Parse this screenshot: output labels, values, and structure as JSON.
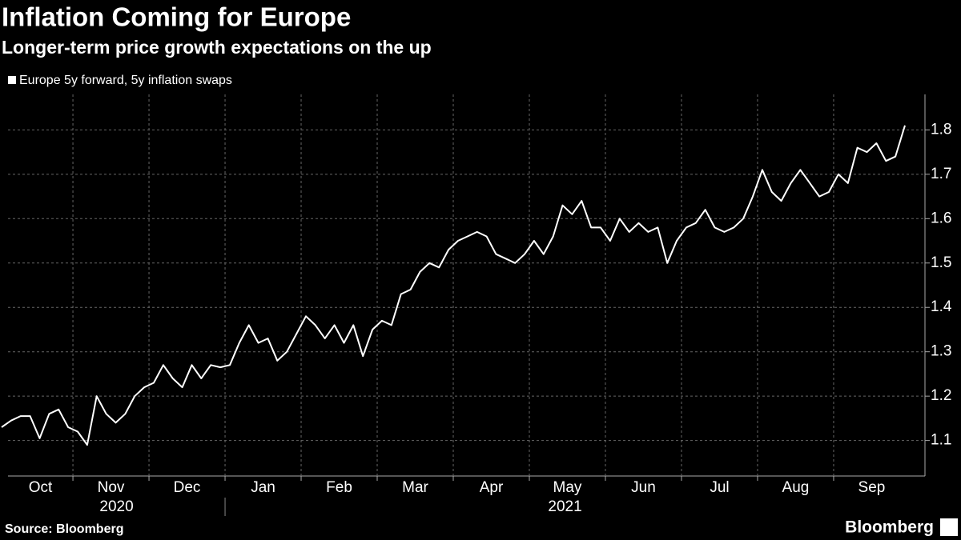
{
  "chart_data": {
    "type": "line",
    "title": "Inflation Coming for Europe",
    "subtitle": "Longer-term price growth expectations on the up",
    "categories": [
      null,
      null,
      null,
      null,
      "Oct",
      null,
      null,
      null,
      null,
      null,
      null,
      null,
      "Nov",
      null,
      null,
      null,
      null,
      null,
      null,
      null,
      "Dec",
      null,
      null,
      null,
      null,
      null,
      null,
      null,
      "Jan",
      null,
      null,
      null,
      null,
      null,
      null,
      null,
      "Feb",
      null,
      null,
      null,
      null,
      null,
      null,
      null,
      "Mar",
      null,
      null,
      null,
      null,
      null,
      null,
      null,
      "Apr",
      null,
      null,
      null,
      null,
      null,
      null,
      null,
      "May",
      null,
      null,
      null,
      null,
      null,
      null,
      null,
      "Jun",
      null,
      null,
      null,
      null,
      null,
      null,
      null,
      "Jul",
      null,
      null,
      null,
      null,
      null,
      null,
      null,
      "Aug",
      null,
      null,
      null,
      null,
      null,
      null,
      null,
      "Sep",
      null,
      null,
      null
    ],
    "year_labels": [
      "2020",
      "2021"
    ],
    "series": [
      {
        "name": "Europe 5y forward, 5y inflation swaps",
        "color": "#ffffff",
        "values": [
          1.13,
          1.145,
          1.155,
          1.155,
          1.105,
          1.16,
          1.17,
          1.13,
          1.12,
          1.09,
          1.2,
          1.16,
          1.14,
          1.16,
          1.2,
          1.22,
          1.23,
          1.27,
          1.24,
          1.22,
          1.27,
          1.24,
          1.27,
          1.265,
          1.27,
          1.32,
          1.36,
          1.32,
          1.33,
          1.28,
          1.3,
          1.34,
          1.38,
          1.36,
          1.33,
          1.36,
          1.32,
          1.36,
          1.29,
          1.35,
          1.37,
          1.36,
          1.43,
          1.44,
          1.48,
          1.5,
          1.49,
          1.53,
          1.55,
          1.56,
          1.57,
          1.56,
          1.52,
          1.51,
          1.5,
          1.52,
          1.55,
          1.52,
          1.56,
          1.63,
          1.61,
          1.64,
          1.58,
          1.58,
          1.55,
          1.6,
          1.57,
          1.59,
          1.57,
          1.58,
          1.5,
          1.55,
          1.58,
          1.59,
          1.62,
          1.58,
          1.57,
          1.58,
          1.6,
          1.65,
          1.71,
          1.66,
          1.64,
          1.68,
          1.71,
          1.68,
          1.65,
          1.66,
          1.7,
          1.68,
          1.76,
          1.75,
          1.77,
          1.73,
          1.74,
          1.81
        ]
      }
    ],
    "ylim": [
      1.02,
      1.88
    ],
    "yticks": [
      1.1,
      1.2,
      1.3,
      1.4,
      1.5,
      1.6,
      1.7,
      1.8
    ],
    "grid": true,
    "source": "Source: Bloomberg",
    "logo": "Bloomberg"
  }
}
